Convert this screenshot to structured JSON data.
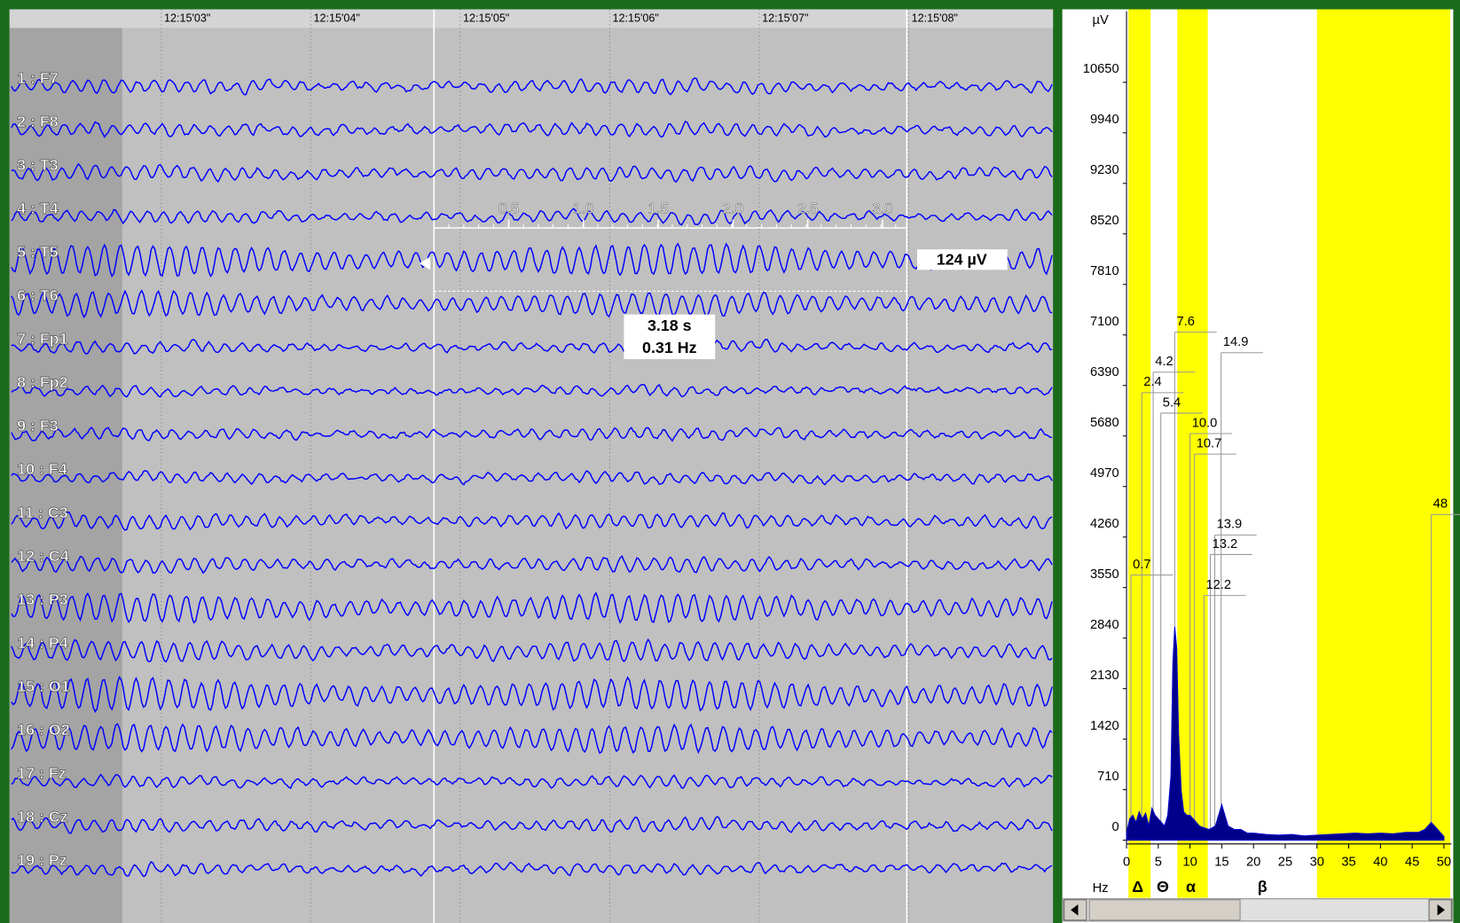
{
  "eeg": {
    "time_labels": [
      "12:15'03\"",
      "12:15'04\"",
      "12:15'05\"",
      "12:15'06\"",
      "12:15'07\"",
      "12:15'08\""
    ],
    "channels": [
      "1 : F7",
      "2 : F8",
      "3 : T3",
      "4 : T4",
      "5 : T5",
      "6 : T6",
      "7 : Fp1",
      "8 : Fp2",
      "9 : F3",
      "10 : F4",
      "11 : C3",
      "12 : C4",
      "13 : P3",
      "14 : P4",
      "15 : O1",
      "16 : O2",
      "17 : Fz",
      "18 : Cz",
      "19 : Pz"
    ],
    "ruler_ticks": [
      0.5,
      {
        "value": 1,
        "label": "1.0"
      },
      1.5,
      {
        "value": 2,
        "label": "2.0"
      },
      2.5,
      {
        "value": 3,
        "label": "3.0"
      }
    ],
    "amplitude": "124 µV",
    "duration": "3.18 s",
    "frequency": "0.31 Hz"
  },
  "spectrum": {
    "unit": "µV",
    "x_unit": "Hz",
    "ylim": [
      0,
      11650
    ],
    "yticks": [
      0,
      710,
      1420,
      2130,
      2840,
      3550,
      4260,
      4970,
      5680,
      6390,
      7100,
      7810,
      8520,
      9230,
      9940,
      10650
    ],
    "xlim": [
      0,
      50
    ],
    "xticks": [
      0,
      5,
      10,
      15,
      20,
      25,
      30,
      35,
      40,
      45,
      50
    ],
    "highlight_color": "#ffff00",
    "highlight_ranges": [
      [
        0.3,
        3.8
      ],
      [
        8,
        12.8
      ],
      [
        30,
        51
      ]
    ],
    "bands": [
      "Δ",
      "Θ",
      "α",
      "β"
    ],
    "peaks": [
      7.6,
      14.9,
      4.2,
      2.4,
      5.4,
      {
        "value": 10,
        "label": "10.0"
      },
      10.7,
      13.9,
      13.2,
      0.7,
      12.2,
      48
    ],
    "curve": {
      "x": [
        0,
        0.5,
        1,
        1.5,
        2,
        2.5,
        3,
        3.5,
        4,
        4.5,
        5,
        5.5,
        6,
        6.5,
        7,
        7.3,
        7.6,
        7.9,
        8.2,
        8.6,
        9,
        9.5,
        10,
        10.5,
        11,
        11.5,
        12,
        13,
        14,
        14.5,
        15,
        15.5,
        16,
        17,
        18,
        19,
        20,
        22,
        24,
        26,
        28,
        30,
        32,
        34,
        36,
        38,
        40,
        42,
        44,
        46,
        47,
        48,
        49,
        50
      ],
      "y": [
        100,
        300,
        350,
        250,
        400,
        300,
        380,
        200,
        450,
        350,
        300,
        250,
        200,
        350,
        900,
        2500,
        3000,
        2700,
        1500,
        700,
        400,
        350,
        350,
        300,
        250,
        200,
        180,
        150,
        200,
        350,
        500,
        350,
        200,
        150,
        150,
        100,
        100,
        80,
        70,
        80,
        60,
        70,
        80,
        90,
        100,
        90,
        100,
        90,
        110,
        110,
        150,
        250,
        150,
        50
      ]
    }
  }
}
